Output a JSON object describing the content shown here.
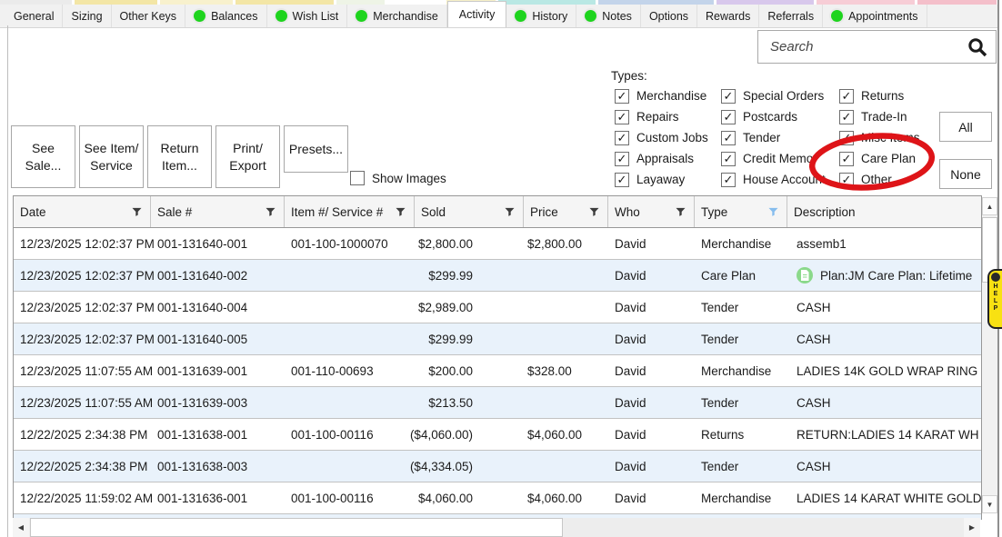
{
  "icons": {
    "up": "▲",
    "down": "▼",
    "left": "◀",
    "right": "▶",
    "check": "✓"
  },
  "colors": {
    "annotationRed": "#de1418",
    "tabDotGreen": "#1ed41e",
    "rowAlt": "#e9f2fb",
    "helpYellow": "#f8e112",
    "careIconGreen": "#8bd98b",
    "filterActiveBlue": "#86bdee",
    "filterIdle": "#3c3c3c"
  },
  "topStrip": [
    {
      "c": "#ebebeb",
      "w": 86
    },
    {
      "c": "#f3e6a6",
      "w": 100
    },
    {
      "c": "#f8f1cd",
      "w": 88
    },
    {
      "c": "#f3e6a6",
      "w": 118
    },
    {
      "c": "#eef4e6",
      "w": 58
    },
    {
      "c": "#ffffff",
      "w": 68
    },
    {
      "c": "#f6f0c8",
      "w": 58
    },
    {
      "c": "#b9e8e4",
      "w": 118
    },
    {
      "c": "#c3d4ea",
      "w": 138
    },
    {
      "c": "#d8c8ec",
      "w": 118
    },
    {
      "c": "#f7cdd6",
      "w": 118
    },
    {
      "c": "#f4bfca",
      "w": 95
    }
  ],
  "tabs": [
    {
      "label": "General",
      "dot": false,
      "active": false
    },
    {
      "label": "Sizing",
      "dot": false,
      "active": false
    },
    {
      "label": "Other Keys",
      "dot": false,
      "active": false
    },
    {
      "label": "Balances",
      "dot": true,
      "active": false
    },
    {
      "label": "Wish List",
      "dot": true,
      "active": false
    },
    {
      "label": "Merchandise",
      "dot": true,
      "active": false
    },
    {
      "label": "Activity",
      "dot": false,
      "active": true
    },
    {
      "label": "History",
      "dot": true,
      "active": false
    },
    {
      "label": "Notes",
      "dot": true,
      "active": false
    },
    {
      "label": "Options",
      "dot": false,
      "active": false
    },
    {
      "label": "Rewards",
      "dot": false,
      "active": false
    },
    {
      "label": "Referrals",
      "dot": false,
      "active": false
    },
    {
      "label": "Appointments",
      "dot": true,
      "active": false
    }
  ],
  "search": {
    "placeholder": "Search"
  },
  "actionButtons": [
    {
      "label": "See Sale...",
      "short": false
    },
    {
      "label": "See Item/ Service",
      "short": false
    },
    {
      "label": "Return Item...",
      "short": false
    },
    {
      "label": "Print/ Export",
      "short": false
    },
    {
      "label": "Presets...",
      "short": true
    }
  ],
  "showImages": {
    "label": "Show Images",
    "checked": false
  },
  "types": {
    "label": "Types:",
    "allLabel": "All",
    "noneLabel": "None",
    "allChecked": true,
    "columns": [
      [
        "Merchandise",
        "Repairs",
        "Custom Jobs",
        "Appraisals",
        "Layaway"
      ],
      [
        "Special Orders",
        "Postcards",
        "Tender",
        "Credit Memo",
        "House Account"
      ],
      [
        "Returns",
        "Trade-In",
        "Misc Items",
        "Care Plan",
        "Other"
      ]
    ],
    "annotated": "Care Plan"
  },
  "helpTab": {
    "letters": "HELP"
  },
  "table": {
    "headers": [
      {
        "label": "Date",
        "filter": true,
        "filterActive": false
      },
      {
        "label": "Sale #",
        "filter": true,
        "filterActive": false
      },
      {
        "label": "Item #/ Service #",
        "filter": true,
        "filterActive": false
      },
      {
        "label": "Sold",
        "filter": true,
        "filterActive": false
      },
      {
        "label": "Price",
        "filter": true,
        "filterActive": false
      },
      {
        "label": "Who",
        "filter": true,
        "filterActive": false
      },
      {
        "label": "Type",
        "filter": true,
        "filterActive": true
      },
      {
        "label": "Description",
        "filter": false,
        "filterActive": false
      }
    ],
    "rows": [
      {
        "date": "12/23/2025 12:02:37 PM",
        "sale": "001-131640-001",
        "item": "001-100-1000070",
        "sold": "$2,800.00",
        "price": "$2,800.00",
        "who": "David",
        "type": "Merchandise",
        "desc": "assemb1",
        "descIcon": false
      },
      {
        "date": "12/23/2025 12:02:37 PM",
        "sale": "001-131640-002",
        "item": "",
        "sold": "$299.99",
        "price": "",
        "who": "David",
        "type": "Care Plan",
        "desc": "Plan:JM Care Plan: Lifetime",
        "descIcon": true
      },
      {
        "date": "12/23/2025 12:02:37 PM",
        "sale": "001-131640-004",
        "item": "",
        "sold": "$2,989.00",
        "price": "",
        "who": "David",
        "type": "Tender",
        "desc": "CASH",
        "descIcon": false
      },
      {
        "date": "12/23/2025 12:02:37 PM",
        "sale": "001-131640-005",
        "item": "",
        "sold": "$299.99",
        "price": "",
        "who": "David",
        "type": "Tender",
        "desc": "CASH",
        "descIcon": false
      },
      {
        "date": "12/23/2025 11:07:55 AM",
        "sale": "001-131639-001",
        "item": "001-110-00693",
        "sold": "$200.00",
        "price": "$328.00",
        "who": "David",
        "type": "Merchandise",
        "desc": "LADIES 14K GOLD WRAP RING",
        "descIcon": false
      },
      {
        "date": "12/23/2025 11:07:55 AM",
        "sale": "001-131639-003",
        "item": "",
        "sold": "$213.50",
        "price": "",
        "who": "David",
        "type": "Tender",
        "desc": "CASH",
        "descIcon": false
      },
      {
        "date": "12/22/2025 2:34:38 PM",
        "sale": "001-131638-001",
        "item": "001-100-00116",
        "sold": "($4,060.00)",
        "price": "$4,060.00",
        "who": "David",
        "type": "Returns",
        "desc": "RETURN:LADIES 14 KARAT WH",
        "descIcon": false
      },
      {
        "date": "12/22/2025 2:34:38 PM",
        "sale": "001-131638-003",
        "item": "",
        "sold": "($4,334.05)",
        "price": "",
        "who": "David",
        "type": "Tender",
        "desc": "CASH",
        "descIcon": false
      },
      {
        "date": "12/22/2025 11:59:02 AM",
        "sale": "001-131636-001",
        "item": "001-100-00116",
        "sold": "$4,060.00",
        "price": "$4,060.00",
        "who": "David",
        "type": "Merchandise",
        "desc": "LADIES 14 KARAT WHITE GOLD",
        "descIcon": false
      }
    ]
  }
}
